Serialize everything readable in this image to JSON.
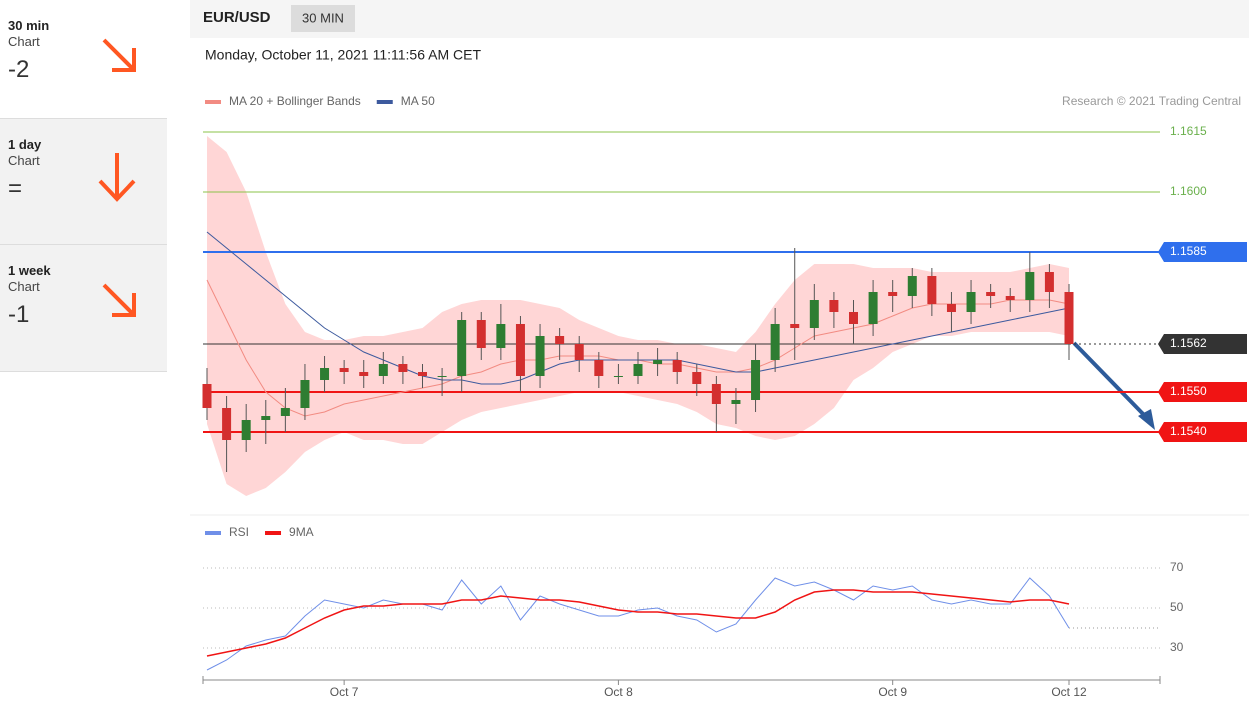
{
  "sidebar": [
    {
      "period": "30 min",
      "kind": "Chart",
      "score": "-2"
    },
    {
      "period": "1 day",
      "kind": "Chart",
      "score": "="
    },
    {
      "period": "1 week",
      "kind": "Chart",
      "score": "-1"
    }
  ],
  "header": {
    "symbol": "EUR/USD",
    "interval": "30 MIN",
    "timestamp": "Monday, October 11, 2021 11:11:56 AM CET",
    "credit": "Research © 2021 Trading Central"
  },
  "chart_data": [
    {
      "type": "candlestick",
      "legend": "top-left",
      "ylim": [
        1.152,
        1.1618
      ],
      "up_color": "#2e7d32",
      "down_color": "#d32f2f",
      "open": [
        1.1552,
        1.1546,
        1.1538,
        1.1543,
        1.1544,
        1.1546,
        1.1553,
        1.1556,
        1.1555,
        1.1554,
        1.1557,
        1.1555,
        1.1554,
        1.1554,
        1.1568,
        1.1561,
        1.1567,
        1.1554,
        1.1564,
        1.1562,
        1.1558,
        1.1554,
        1.1554,
        1.1557,
        1.1558,
        1.1555,
        1.1552,
        1.1547,
        1.1548,
        1.1558,
        1.1567,
        1.1566,
        1.1573,
        1.157,
        1.1567,
        1.1575,
        1.1574,
        1.1579,
        1.1572,
        1.157,
        1.1575,
        1.1574,
        1.1573,
        1.158,
        1.1575
      ],
      "high": [
        1.1556,
        1.1549,
        1.1547,
        1.1548,
        1.1551,
        1.1557,
        1.1559,
        1.1558,
        1.1558,
        1.156,
        1.1559,
        1.1557,
        1.1556,
        1.157,
        1.157,
        1.1572,
        1.1569,
        1.1567,
        1.1566,
        1.1564,
        1.156,
        1.1557,
        1.156,
        1.1561,
        1.156,
        1.1557,
        1.1554,
        1.1551,
        1.1562,
        1.1571,
        1.1586,
        1.1577,
        1.1575,
        1.1573,
        1.1578,
        1.1578,
        1.1581,
        1.1581,
        1.1575,
        1.1578,
        1.1577,
        1.1576,
        1.1585,
        1.1582,
        1.1577
      ],
      "low": [
        1.1543,
        1.153,
        1.1535,
        1.1537,
        1.154,
        1.1543,
        1.155,
        1.1552,
        1.1551,
        1.1552,
        1.1552,
        1.1551,
        1.1549,
        1.155,
        1.1558,
        1.1558,
        1.155,
        1.1551,
        1.1558,
        1.1555,
        1.1551,
        1.1552,
        1.1552,
        1.1554,
        1.1552,
        1.1549,
        1.154,
        1.1542,
        1.1545,
        1.1555,
        1.1558,
        1.1563,
        1.1566,
        1.1562,
        1.1564,
        1.157,
        1.1571,
        1.1569,
        1.1565,
        1.1567,
        1.1571,
        1.157,
        1.157,
        1.1571,
        1.1558
      ],
      "close": [
        1.1546,
        1.1538,
        1.1543,
        1.1544,
        1.1546,
        1.1553,
        1.1556,
        1.1555,
        1.1554,
        1.1557,
        1.1555,
        1.1554,
        1.1554,
        1.1568,
        1.1561,
        1.1567,
        1.1554,
        1.1564,
        1.1562,
        1.1558,
        1.1554,
        1.1554,
        1.1557,
        1.1558,
        1.1555,
        1.1552,
        1.1547,
        1.1548,
        1.1558,
        1.1567,
        1.1566,
        1.1573,
        1.157,
        1.1567,
        1.1575,
        1.1574,
        1.1579,
        1.1572,
        1.157,
        1.1575,
        1.1574,
        1.1573,
        1.158,
        1.1575,
        1.1562
      ],
      "series": [
        {
          "name": "MA 20 + Bollinger Bands",
          "color": "#f28b82",
          "band_color": "#ffd6d6",
          "values": [
            1.1578,
            1.1568,
            1.1558,
            1.155,
            1.1546,
            1.1544,
            1.1545,
            1.1547,
            1.1548,
            1.1549,
            1.155,
            1.1551,
            1.1552,
            1.1554,
            1.1555,
            1.1557,
            1.1558,
            1.1558,
            1.1559,
            1.1559,
            1.1559,
            1.1558,
            1.1558,
            1.1557,
            1.1557,
            1.1556,
            1.1555,
            1.1555,
            1.1556,
            1.1558,
            1.1561,
            1.1564,
            1.1565,
            1.1566,
            1.1567,
            1.1569,
            1.1571,
            1.1572,
            1.1572,
            1.1572,
            1.1572,
            1.1573,
            1.1573,
            1.1573,
            1.1572
          ],
          "upper": [
            1.1614,
            1.161,
            1.16,
            1.1585,
            1.1572,
            1.1565,
            1.1563,
            1.1563,
            1.1564,
            1.1564,
            1.1565,
            1.1566,
            1.157,
            1.1572,
            1.1573,
            1.1573,
            1.1573,
            1.1572,
            1.1571,
            1.1568,
            1.1566,
            1.1564,
            1.1563,
            1.1563,
            1.1562,
            1.1562,
            1.1561,
            1.156,
            1.1565,
            1.1572,
            1.1578,
            1.1582,
            1.1582,
            1.1582,
            1.1581,
            1.1581,
            1.1581,
            1.158,
            1.158,
            1.158,
            1.158,
            1.158,
            1.1581,
            1.1582,
            1.1581
          ],
          "lower": [
            1.1542,
            1.1527,
            1.1524,
            1.1526,
            1.153,
            1.1535,
            1.1538,
            1.154,
            1.1538,
            1.1538,
            1.1537,
            1.1537,
            1.154,
            1.1543,
            1.1545,
            1.1546,
            1.1547,
            1.1548,
            1.1549,
            1.155,
            1.155,
            1.155,
            1.1549,
            1.1548,
            1.1547,
            1.1545,
            1.1542,
            1.1541,
            1.1539,
            1.1538,
            1.1539,
            1.1542,
            1.1546,
            1.1553,
            1.1556,
            1.156,
            1.1562,
            1.1564,
            1.1564,
            1.1565,
            1.1565,
            1.1565,
            1.1565,
            1.1565,
            1.1564
          ]
        },
        {
          "name": "MA 50",
          "color": "#3d5a9e",
          "values": [
            1.159,
            1.1586,
            1.1582,
            1.1578,
            1.1574,
            1.157,
            1.1566,
            1.1563,
            1.156,
            1.1558,
            1.1556,
            1.1554,
            1.1553,
            1.1553,
            1.1552,
            1.1552,
            1.1553,
            1.1555,
            1.1557,
            1.1558,
            1.1558,
            1.1558,
            1.1558,
            1.1558,
            1.1558,
            1.1557,
            1.1556,
            1.1555,
            1.1555,
            1.1556,
            1.1557,
            1.1558,
            1.1559,
            1.156,
            1.1561,
            1.1562,
            1.1563,
            1.1564,
            1.1565,
            1.1566,
            1.1567,
            1.1568,
            1.1569,
            1.157,
            1.1571
          ]
        }
      ],
      "levels": [
        {
          "value": 1.1615,
          "color": "#8bc34a",
          "boxed": false
        },
        {
          "value": 1.16,
          "label": "1.1600",
          "color": "#8bc34a",
          "boxed": false
        },
        {
          "value": 1.1585,
          "color": "#2f6fed",
          "boxed": true
        },
        {
          "value": 1.1562,
          "color": "#333333",
          "boxed": true,
          "dotted": true
        },
        {
          "value": 1.155,
          "label": "1.1550",
          "color": "#f01414",
          "boxed": true
        },
        {
          "value": 1.154,
          "label": "1.1540",
          "color": "#f01414",
          "boxed": true
        }
      ]
    },
    {
      "type": "line",
      "legend": "top-left",
      "ylim": [
        15,
        81
      ],
      "yticks": [
        70,
        50,
        30
      ],
      "grid": true,
      "categories": [
        null,
        null,
        null,
        null,
        null,
        null,
        null,
        "Oct 7",
        null,
        null,
        null,
        null,
        null,
        null,
        null,
        null,
        null,
        null,
        null,
        null,
        null,
        "Oct 8",
        null,
        null,
        null,
        null,
        null,
        null,
        null,
        null,
        null,
        null,
        null,
        null,
        null,
        "Oct 9",
        null,
        null,
        null,
        null,
        null,
        null,
        null,
        null,
        "Oct 12"
      ],
      "series": [
        {
          "name": "RSI",
          "color": "#6f8fe8",
          "values": [
            19,
            24,
            31,
            34,
            36,
            46,
            54,
            52,
            50,
            54,
            52,
            52,
            49,
            64,
            52,
            61,
            44,
            56,
            52,
            49,
            46,
            46,
            49,
            50,
            46,
            44,
            38,
            42,
            54,
            65,
            61,
            63,
            59,
            54,
            61,
            59,
            61,
            54,
            52,
            54,
            52,
            52,
            65,
            56,
            40
          ]
        },
        {
          "name": "9MA",
          "color": "#f01414",
          "values": [
            26,
            28,
            30,
            32,
            35,
            40,
            45,
            49,
            51,
            51,
            52,
            52,
            52,
            54,
            54,
            56,
            55,
            54,
            54,
            53,
            51,
            49,
            48,
            48,
            47,
            47,
            46,
            45,
            45,
            48,
            54,
            58,
            59,
            59,
            58,
            58,
            58,
            57,
            56,
            55,
            54,
            53,
            54,
            54,
            52
          ]
        }
      ]
    }
  ]
}
